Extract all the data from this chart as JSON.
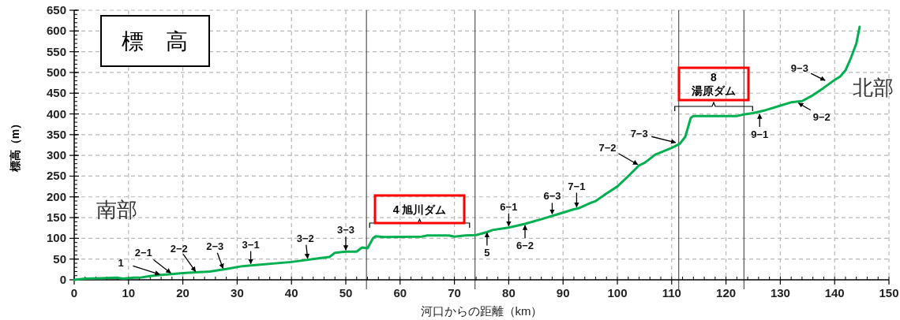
{
  "chart_data": {
    "type": "line",
    "title": "標　高",
    "xlabel": "河口からの距離（km）",
    "ylabel": "標高（m）",
    "xlim": [
      0,
      150
    ],
    "ylim": [
      0,
      650
    ],
    "xticks": [
      0,
      10,
      20,
      30,
      40,
      50,
      60,
      70,
      80,
      90,
      100,
      110,
      120,
      130,
      140,
      150
    ],
    "yticks": [
      0,
      50,
      100,
      150,
      200,
      250,
      300,
      350,
      400,
      450,
      500,
      550,
      600,
      650
    ],
    "grid": true,
    "marker": "none",
    "line_style": "solid",
    "series": [
      {
        "color": "#00b050",
        "x": [
          0,
          2,
          5,
          8,
          9,
          11,
          12,
          14,
          16,
          18,
          20,
          25,
          28,
          31,
          33,
          40,
          45,
          47,
          48,
          50,
          52,
          53,
          54,
          55,
          55.5,
          57,
          64,
          65,
          69,
          70,
          72,
          74,
          76,
          77,
          80,
          83,
          86,
          90,
          92,
          93,
          95,
          96,
          98,
          100,
          102,
          104,
          105,
          107,
          110,
          111.5,
          112.5,
          113.5,
          114,
          120,
          122,
          123,
          125,
          127,
          130,
          132,
          134,
          136,
          138,
          140,
          141,
          142,
          143,
          144,
          144.6
        ],
        "values": [
          0,
          3,
          4,
          5,
          3,
          5,
          5,
          9,
          12,
          14,
          16,
          20,
          26,
          33,
          35,
          43,
          52,
          55,
          65,
          68,
          68,
          78,
          76,
          100,
          105,
          103,
          104,
          107,
          107,
          104,
          107,
          108,
          115,
          120,
          126,
          135,
          146,
          162,
          170,
          173,
          185,
          190,
          208,
          225,
          250,
          276,
          282,
          302,
          318,
          328,
          345,
          390,
          395,
          395,
          395,
          398,
          402,
          408,
          420,
          428,
          431,
          445,
          463,
          482,
          490,
          505,
          535,
          570,
          610
        ]
      }
    ],
    "ref_lines": [
      {
        "axis": "x",
        "value": 53.8,
        "color": "#333333"
      },
      {
        "axis": "x",
        "value": 73.8,
        "color": "#333333"
      },
      {
        "axis": "x",
        "value": 111.3,
        "color": "#333333"
      },
      {
        "axis": "x",
        "value": 123.3,
        "color": "#333333"
      }
    ],
    "annotations": [
      {
        "text": "1",
        "x": 16,
        "y": 12
      },
      {
        "text": "2−1",
        "x": 18,
        "y": 14
      },
      {
        "text": "2−2",
        "x": 22.5,
        "y": 17
      },
      {
        "text": "2−3",
        "x": 27.5,
        "y": 24
      },
      {
        "text": "3−1",
        "x": 32.5,
        "y": 35
      },
      {
        "text": "3−2",
        "x": 43,
        "y": 48
      },
      {
        "text": "3−3",
        "x": 50,
        "y": 68
      },
      {
        "text": "5",
        "x": 76,
        "y": 117
      },
      {
        "text": "6−1",
        "x": 80,
        "y": 126
      },
      {
        "text": "6−2",
        "x": 83,
        "y": 135
      },
      {
        "text": "6−3",
        "x": 88,
        "y": 155
      },
      {
        "text": "7−1",
        "x": 92.5,
        "y": 172
      },
      {
        "text": "7−2",
        "x": 104,
        "y": 276
      },
      {
        "text": "7−3",
        "x": 111,
        "y": 330
      },
      {
        "text": "9−1",
        "x": 126.2,
        "y": 403
      },
      {
        "text": "9−2",
        "x": 133.1,
        "y": 428
      },
      {
        "text": "9−3",
        "x": 138.5,
        "y": 479
      },
      "南部",
      "北部",
      "4 旭川ダム",
      "8\n湯原ダム"
    ]
  }
}
